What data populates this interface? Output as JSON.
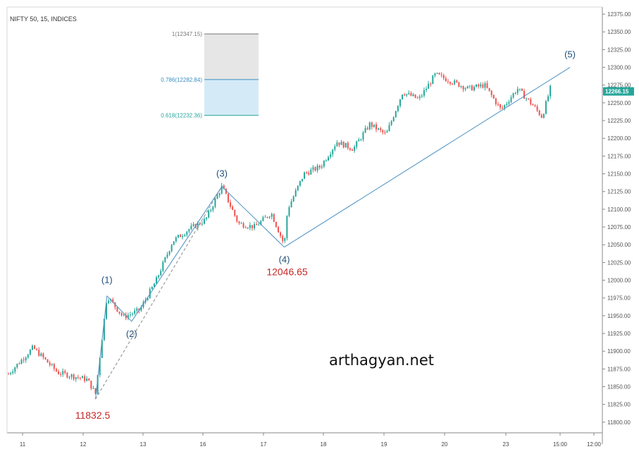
{
  "chart_title": "NIFTY 50, 15, INDICES",
  "watermark": "arthagyan.net",
  "colors": {
    "up": "#26a69a",
    "down": "#ef5350",
    "wave": "#4a90c2",
    "label_red": "#c62828",
    "last_price_bg": "#26a69a"
  },
  "chart_data": {
    "type": "candlestick",
    "title": "NIFTY 50, 15, INDICES",
    "y_axis_ticks": [
      "12375.00",
      "12350.00",
      "12325.00",
      "12300.00",
      "12275.00",
      "12250.00",
      "12225.00",
      "12200.00",
      "12175.00",
      "12150.00",
      "12125.00",
      "12100.00",
      "12075.00",
      "12050.00",
      "12025.00",
      "12000.00",
      "11975.00",
      "11950.00",
      "11925.00",
      "11900.00",
      "11875.00",
      "11850.00",
      "11825.00",
      "11800.00"
    ],
    "ylim": [
      11785,
      12385
    ],
    "x_axis_ticks": [
      "11",
      "12",
      "13",
      "16",
      "17",
      "18",
      "19",
      "20",
      "23",
      "15:00",
      "12:00"
    ],
    "last_price": "12266.15",
    "price_path": [
      [
        0,
        11868
      ],
      [
        1.5,
        11905
      ],
      [
        3,
        11870
      ],
      [
        4.8,
        11860
      ],
      [
        5.3,
        11840
      ],
      [
        6,
        11978
      ],
      [
        7,
        11948
      ],
      [
        8,
        11958
      ],
      [
        9,
        12000
      ],
      [
        10,
        12055
      ],
      [
        11,
        12072
      ],
      [
        12,
        12085
      ],
      [
        13,
        12132
      ],
      [
        14,
        12080
      ],
      [
        15,
        12075
      ],
      [
        16,
        12095
      ],
      [
        16.8,
        12050
      ],
      [
        17,
        12100
      ],
      [
        18,
        12150
      ],
      [
        19,
        12160
      ],
      [
        20,
        12195
      ],
      [
        21,
        12185
      ],
      [
        22,
        12220
      ],
      [
        23,
        12205
      ],
      [
        24,
        12265
      ],
      [
        25,
        12255
      ],
      [
        26,
        12290
      ],
      [
        27,
        12280
      ],
      [
        28,
        12270
      ],
      [
        29,
        12275
      ],
      [
        30,
        12240
      ],
      [
        31,
        12270
      ],
      [
        32,
        12245
      ],
      [
        32.5,
        12230
      ],
      [
        33,
        12270
      ]
    ],
    "candle_count": 250,
    "waves": [
      {
        "label": "(1)",
        "bar": 6,
        "price": 11978
      },
      {
        "label": "(2)",
        "bar": 7.5,
        "price": 11942
      },
      {
        "label": "(3)",
        "bar": 13,
        "price": 12132
      },
      {
        "label": "(4)",
        "bar": 16.8,
        "price": 12046.65
      },
      {
        "label": "(5)",
        "bar": 34.2,
        "price": 12300
      }
    ],
    "wave_lines": [
      {
        "from": [
          5.3,
          11832.5
        ],
        "to": [
          6,
          11978
        ]
      },
      {
        "from": [
          6,
          11978
        ],
        "to": [
          7.5,
          11942
        ]
      },
      {
        "from": [
          7.5,
          11942
        ],
        "to": [
          13,
          12132
        ]
      },
      {
        "from": [
          13,
          12132
        ],
        "to": [
          16.8,
          12046.65
        ]
      },
      {
        "from": [
          16.8,
          12046.65
        ],
        "to": [
          34.2,
          12300
        ]
      }
    ],
    "dashed_line": {
      "from": [
        5.3,
        11832.5
      ],
      "to": [
        13,
        12132
      ]
    },
    "annotations": [
      {
        "text": "11832.5",
        "bar": 5.3,
        "price": 11832.5
      },
      {
        "text": "12046.65",
        "bar": 16.8,
        "price": 12046.65
      }
    ],
    "fib_levels": [
      {
        "label": "1(12347.15)",
        "price": 12347.15
      },
      {
        "label": "0.786(12282.84)",
        "price": 12282.84
      },
      {
        "label": "0.618(12232.36)",
        "price": 12232.36
      }
    ]
  }
}
